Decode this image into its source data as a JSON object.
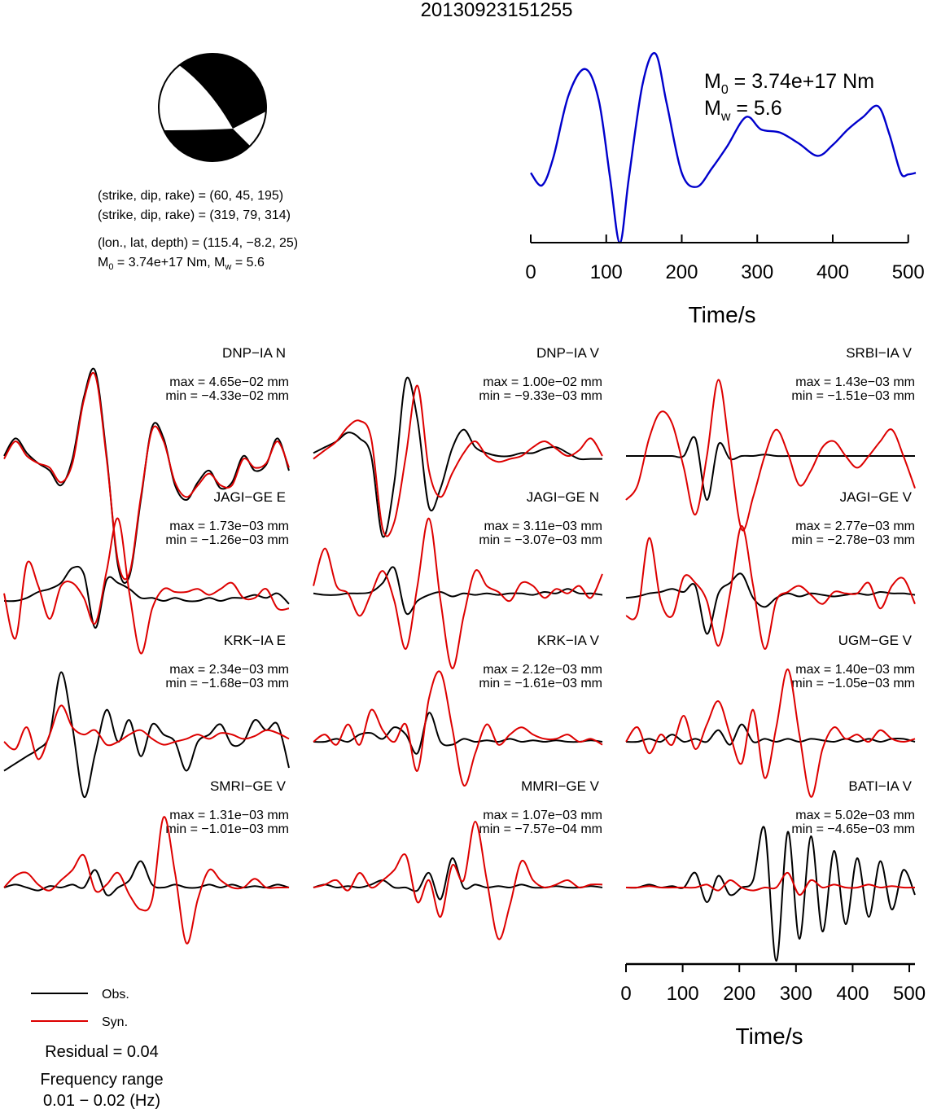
{
  "title": "20130923151255",
  "beachball": {
    "colors": {
      "compression": "#000000",
      "dilatation": "#ffffff"
    }
  },
  "fault_info": {
    "line1": "(strike, dip, rake) = (60, 45, 195)",
    "line2": "(strike, dip, rake) = (319, 79, 314)",
    "line3": "(lon., lat, depth) = (115.4, −8.2, 25)",
    "m0_prefix": "M",
    "m0_sub": "0",
    "m0_value": " = 3.74e+17 Nm, M",
    "mw_sub": "w",
    "mw_value": " = 5.6"
  },
  "stf": {
    "m0_label": "M",
    "m0_sub": "0",
    "m0_value": " = 3.74e+17 Nm",
    "mw_label": "M",
    "mw_sub": "w",
    "mw_value": " = 5.6",
    "color": "#0000cc",
    "xlabel": "Time/s",
    "xticks": [
      "0",
      "100",
      "200",
      "300",
      "400",
      "500"
    ]
  },
  "chart_data": [
    {
      "type": "line",
      "name": "source-time-function",
      "x": [
        0,
        15,
        30,
        50,
        72,
        90,
        105,
        118,
        130,
        148,
        165,
        180,
        200,
        220,
        240,
        260,
        285,
        305,
        330,
        355,
        380,
        400,
        420,
        440,
        460,
        475,
        490,
        500,
        510
      ],
      "y": [
        0.45,
        0.37,
        0.55,
        0.95,
        1.12,
        0.92,
        0.42,
        0.0,
        0.42,
        1.02,
        1.22,
        0.9,
        0.45,
        0.36,
        0.48,
        0.62,
        0.81,
        0.73,
        0.71,
        0.64,
        0.56,
        0.63,
        0.73,
        0.81,
        0.88,
        0.7,
        0.45,
        0.44,
        0.45
      ],
      "xlim": [
        0,
        510
      ],
      "xticks": [
        0,
        100,
        200,
        300,
        400,
        500
      ],
      "xlabel": "Time/s",
      "color": "#0000cc"
    },
    {
      "type": "line",
      "panels": [
        {
          "station": "DNP−IA N",
          "max": "max = 4.65e−02 mm",
          "min": "min = −4.33e−02 mm",
          "obs": [
            0.5,
            0.62,
            0.52,
            0.45,
            0.4,
            0.3,
            0.48,
            0.9,
            1.08,
            0.5,
            -0.25,
            -0.32,
            0.2,
            0.7,
            0.62,
            0.3,
            0.2,
            0.32,
            0.4,
            0.28,
            0.32,
            0.5,
            0.4,
            0.44,
            0.62,
            0.4
          ],
          "syn": [
            0.48,
            0.6,
            0.5,
            0.45,
            0.42,
            0.32,
            0.45,
            0.88,
            1.05,
            0.48,
            -0.22,
            -0.3,
            0.22,
            0.68,
            0.6,
            0.32,
            0.22,
            0.3,
            0.38,
            0.3,
            0.3,
            0.48,
            0.42,
            0.45,
            0.6,
            0.42
          ]
        },
        {
          "station": "DNP−IA V",
          "max": "max = 1.00e−02 mm",
          "min": "min = −9.33e−03 mm",
          "obs": [
            0.52,
            0.56,
            0.6,
            0.66,
            0.62,
            0.5,
            -0.05,
            0.32,
            1.02,
            0.75,
            0.15,
            0.28,
            0.55,
            0.68,
            0.56,
            0.52,
            0.5,
            0.5,
            0.52,
            0.52,
            0.55,
            0.56,
            0.52,
            0.48,
            0.48,
            0.48
          ],
          "syn": [
            0.48,
            0.54,
            0.6,
            0.7,
            0.74,
            0.62,
            0.0,
            0.05,
            0.5,
            0.98,
            0.4,
            0.22,
            0.38,
            0.52,
            0.6,
            0.5,
            0.46,
            0.48,
            0.5,
            0.56,
            0.6,
            0.55,
            0.5,
            0.54,
            0.62,
            0.5
          ]
        },
        {
          "station": "SRBI−IA V",
          "max": "max = 1.43e−03 mm",
          "min": "min = −1.51e−03 mm",
          "obs": [
            0.5,
            0.5,
            0.5,
            0.5,
            0.5,
            0.5,
            0.62,
            0.2,
            0.58,
            0.48,
            0.5,
            0.5,
            0.51,
            0.5,
            0.5,
            0.5,
            0.5,
            0.5,
            0.5,
            0.5,
            0.5,
            0.5,
            0.5,
            0.5,
            0.5,
            0.5
          ],
          "syn": [
            0.2,
            0.3,
            0.62,
            0.8,
            0.72,
            0.42,
            0.1,
            0.5,
            1.02,
            0.52,
            0.0,
            0.22,
            0.5,
            0.68,
            0.52,
            0.3,
            0.4,
            0.56,
            0.6,
            0.5,
            0.42,
            0.5,
            0.6,
            0.68,
            0.5,
            0.28
          ]
        },
        {
          "station": "JAGI−GE E",
          "max": "max = 1.73e−03 mm",
          "min": "min = −1.26e−03 mm",
          "obs": [
            0.5,
            0.5,
            0.52,
            0.56,
            0.58,
            0.62,
            0.72,
            0.68,
            0.32,
            0.64,
            0.62,
            0.58,
            0.52,
            0.52,
            0.5,
            0.52,
            0.5,
            0.5,
            0.52,
            0.5,
            0.52,
            0.52,
            0.54,
            0.52,
            0.55,
            0.48
          ],
          "syn": [
            0.55,
            0.25,
            0.75,
            0.6,
            0.38,
            0.6,
            0.62,
            0.52,
            0.35,
            0.7,
            1.05,
            0.55,
            0.15,
            0.45,
            0.58,
            0.56,
            0.56,
            0.58,
            0.54,
            0.58,
            0.62,
            0.52,
            0.52,
            0.58,
            0.45,
            0.45
          ]
        },
        {
          "station": "JAGI−GE N",
          "max": "max = 3.11e−03 mm",
          "min": "min = −3.07e−03 mm",
          "obs": [
            0.55,
            0.54,
            0.54,
            0.55,
            0.55,
            0.56,
            0.62,
            0.72,
            0.42,
            0.5,
            0.54,
            0.56,
            0.53,
            0.55,
            0.54,
            0.55,
            0.54,
            0.55,
            0.55,
            0.54,
            0.56,
            0.55,
            0.58,
            0.55,
            0.55,
            0.54
          ],
          "syn": [
            0.6,
            0.85,
            0.6,
            0.55,
            0.4,
            0.55,
            0.7,
            0.5,
            0.18,
            0.6,
            1.05,
            0.5,
            0.05,
            0.4,
            0.7,
            0.6,
            0.56,
            0.5,
            0.62,
            0.6,
            0.52,
            0.58,
            0.55,
            0.6,
            0.52,
            0.68
          ]
        },
        {
          "station": "JAGI−GE V",
          "max": "max = 2.77e−03 mm",
          "min": "min = −2.78e−03 mm",
          "obs": [
            0.52,
            0.53,
            0.55,
            0.56,
            0.58,
            0.56,
            0.6,
            0.28,
            0.55,
            0.62,
            0.68,
            0.52,
            0.46,
            0.52,
            0.55,
            0.53,
            0.55,
            0.54,
            0.53,
            0.54,
            0.55,
            0.54,
            0.56,
            0.55,
            0.55,
            0.54
          ],
          "syn": [
            0.4,
            0.42,
            0.92,
            0.5,
            0.4,
            0.66,
            0.62,
            0.5,
            0.2,
            0.55,
            1.0,
            0.6,
            0.18,
            0.5,
            0.56,
            0.6,
            0.54,
            0.48,
            0.56,
            0.55,
            0.55,
            0.62,
            0.45,
            0.6,
            0.65,
            0.48
          ]
        },
        {
          "station": "KRK−IA E",
          "max": "max = 2.34e−03 mm",
          "min": "min = −1.68e−03 mm",
          "obs": [
            0.3,
            0.35,
            0.4,
            0.45,
            0.55,
            0.98,
            0.6,
            0.12,
            0.42,
            0.72,
            0.5,
            0.65,
            0.4,
            0.62,
            0.55,
            0.5,
            0.3,
            0.5,
            0.55,
            0.62,
            0.48,
            0.5,
            0.65,
            0.58,
            0.62,
            0.32
          ],
          "syn": [
            0.5,
            0.45,
            0.6,
            0.38,
            0.55,
            0.75,
            0.6,
            0.55,
            0.58,
            0.48,
            0.5,
            0.55,
            0.58,
            0.52,
            0.48,
            0.5,
            0.52,
            0.55,
            0.52,
            0.56,
            0.55,
            0.52,
            0.54,
            0.58,
            0.56,
            0.52
          ]
        },
        {
          "station": "KRK−IA V",
          "max": "max = 2.12e−03 mm",
          "min": "min = −1.61e−03 mm",
          "obs": [
            0.5,
            0.5,
            0.52,
            0.5,
            0.55,
            0.56,
            0.52,
            0.6,
            0.55,
            0.42,
            0.7,
            0.5,
            0.48,
            0.52,
            0.5,
            0.51,
            0.5,
            0.52,
            0.5,
            0.51,
            0.5,
            0.51,
            0.5,
            0.5,
            0.51,
            0.5
          ],
          "syn": [
            0.5,
            0.55,
            0.48,
            0.62,
            0.48,
            0.72,
            0.58,
            0.5,
            0.62,
            0.3,
            0.8,
            0.98,
            0.6,
            0.2,
            0.42,
            0.62,
            0.48,
            0.55,
            0.6,
            0.55,
            0.52,
            0.52,
            0.55,
            0.5,
            0.52,
            0.48
          ]
        },
        {
          "station": "UGM−GE V",
          "max": "max = 1.40e−03 mm",
          "min": "min = −1.05e−03 mm",
          "obs": [
            0.5,
            0.5,
            0.52,
            0.5,
            0.55,
            0.5,
            0.52,
            0.5,
            0.58,
            0.48,
            0.62,
            0.5,
            0.52,
            0.5,
            0.52,
            0.5,
            0.52,
            0.51,
            0.5,
            0.52,
            0.5,
            0.52,
            0.5,
            0.52,
            0.52,
            0.5
          ],
          "syn": [
            0.5,
            0.6,
            0.42,
            0.55,
            0.48,
            0.68,
            0.45,
            0.62,
            0.78,
            0.55,
            0.35,
            0.72,
            0.25,
            0.6,
            1.0,
            0.55,
            0.12,
            0.45,
            0.6,
            0.52,
            0.55,
            0.5,
            0.58,
            0.52,
            0.5,
            0.52
          ]
        },
        {
          "station": "SMRI−GE V",
          "max": "max = 1.31e−03 mm",
          "min": "min = −1.01e−03 mm",
          "obs": [
            0.5,
            0.52,
            0.5,
            0.48,
            0.51,
            0.5,
            0.52,
            0.5,
            0.62,
            0.45,
            0.5,
            0.55,
            0.68,
            0.52,
            0.5,
            0.52,
            0.5,
            0.5,
            0.52,
            0.5,
            0.52,
            0.5,
            0.51,
            0.5,
            0.52,
            0.5
          ],
          "syn": [
            0.5,
            0.58,
            0.6,
            0.52,
            0.48,
            0.55,
            0.62,
            0.72,
            0.48,
            0.52,
            0.6,
            0.45,
            0.35,
            0.42,
            0.98,
            0.6,
            0.12,
            0.42,
            0.62,
            0.55,
            0.5,
            0.5,
            0.56,
            0.5,
            0.5,
            0.5
          ]
        },
        {
          "station": "MMRI−GE V",
          "max": "max = 1.07e−03 mm",
          "min": "min = −7.57e−04 mm",
          "obs": [
            0.5,
            0.52,
            0.5,
            0.51,
            0.5,
            0.52,
            0.55,
            0.5,
            0.5,
            0.48,
            0.6,
            0.42,
            0.7,
            0.5,
            0.52,
            0.5,
            0.51,
            0.5,
            0.52,
            0.5,
            0.5,
            0.51,
            0.5,
            0.5,
            0.51,
            0.5
          ],
          "syn": [
            0.5,
            0.52,
            0.55,
            0.48,
            0.6,
            0.5,
            0.55,
            0.62,
            0.72,
            0.4,
            0.55,
            0.3,
            0.65,
            0.55,
            0.95,
            0.55,
            0.15,
            0.38,
            0.68,
            0.55,
            0.5,
            0.52,
            0.55,
            0.5,
            0.52,
            0.52
          ]
        },
        {
          "station": "BATI−IA V",
          "max": "max = 5.02e−03 mm",
          "min": "min = −4.65e−03 mm",
          "obs": [
            0.5,
            0.5,
            0.52,
            0.5,
            0.51,
            0.5,
            0.6,
            0.4,
            0.58,
            0.45,
            0.5,
            0.55,
            0.9,
            0.0,
            0.88,
            0.15,
            0.85,
            0.2,
            0.75,
            0.25,
            0.7,
            0.3,
            0.68,
            0.35,
            0.62,
            0.45
          ],
          "syn": [
            0.5,
            0.5,
            0.51,
            0.5,
            0.5,
            0.5,
            0.5,
            0.52,
            0.48,
            0.55,
            0.5,
            0.48,
            0.5,
            0.5,
            0.6,
            0.45,
            0.55,
            0.5,
            0.52,
            0.5,
            0.5,
            0.52,
            0.5,
            0.51,
            0.5,
            0.5
          ]
        }
      ],
      "xlim": [
        0,
        510
      ],
      "xticks": [
        0,
        100,
        200,
        300,
        400,
        500
      ],
      "xlabel": "Time/s",
      "colors": {
        "obs": "#000000",
        "syn": "#dd0000"
      }
    }
  ],
  "legend": {
    "obs_label": "Obs.",
    "syn_label": "Syn.",
    "residual": "Residual = 0.04",
    "freq_line1": "Frequency range",
    "freq_line2": "0.01 − 0.02 (Hz)"
  }
}
